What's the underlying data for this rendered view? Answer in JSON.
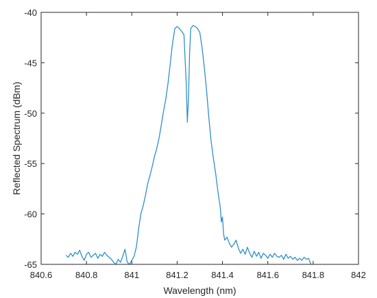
{
  "chart_data": {
    "type": "line",
    "title": "",
    "xlabel": "Wavelength (nm)",
    "ylabel": "Reflected Spectrum (dBm)",
    "xlim": [
      840.6,
      842
    ],
    "ylim": [
      -65,
      -40
    ],
    "xticks": [
      840.6,
      840.8,
      841,
      841.2,
      841.4,
      841.6,
      841.8,
      842
    ],
    "xtick_labels": [
      "840.6",
      "840.8",
      "841",
      "841.2",
      "841.4",
      "841.6",
      "841.8",
      "842"
    ],
    "yticks": [
      -40,
      -45,
      -50,
      -55,
      -60,
      -65
    ],
    "ytick_labels": [
      "-40",
      "-45",
      "-50",
      "-55",
      "-60",
      "-65"
    ],
    "grid": false,
    "box": true,
    "colors": {
      "line": "#2e8fc9",
      "axes": "#262626",
      "background": "#ffffff"
    },
    "series": [
      {
        "x": [
          840.71,
          840.72,
          840.73,
          840.74,
          840.75,
          840.76,
          840.77,
          840.78,
          840.79,
          840.8,
          840.81,
          840.82,
          840.83,
          840.84,
          840.85,
          840.86,
          840.87,
          840.88,
          840.89,
          840.9,
          840.91,
          840.92,
          840.93,
          840.94,
          840.95,
          840.96,
          840.97,
          840.98,
          840.99,
          841.0,
          841.01,
          841.02,
          841.03,
          841.04,
          841.05,
          841.06,
          841.07,
          841.08,
          841.09,
          841.1,
          841.11,
          841.12,
          841.13,
          841.14,
          841.15,
          841.16,
          841.17,
          841.18,
          841.19,
          841.2,
          841.21,
          841.22,
          841.23,
          841.24,
          841.245,
          841.25,
          841.255,
          841.26,
          841.27,
          841.28,
          841.29,
          841.3,
          841.31,
          841.32,
          841.33,
          841.34,
          841.35,
          841.36,
          841.37,
          841.38,
          841.39,
          841.395,
          841.4,
          841.405,
          841.41,
          841.42,
          841.43,
          841.44,
          841.45,
          841.46,
          841.47,
          841.48,
          841.49,
          841.5,
          841.51,
          841.52,
          841.53,
          841.54,
          841.55,
          841.56,
          841.57,
          841.58,
          841.59,
          841.6,
          841.61,
          841.62,
          841.63,
          841.64,
          841.65,
          841.66,
          841.67,
          841.68,
          841.69,
          841.7,
          841.71,
          841.72,
          841.73,
          841.74,
          841.75,
          841.76,
          841.77,
          841.78,
          841.785,
          841.79
        ],
        "y": [
          -64.1,
          -64.3,
          -63.9,
          -64.2,
          -63.8,
          -64.0,
          -63.6,
          -64.2,
          -64.6,
          -64.0,
          -63.8,
          -64.3,
          -64.1,
          -63.9,
          -64.4,
          -64.0,
          -64.2,
          -63.8,
          -64.1,
          -64.3,
          -64.5,
          -64.8,
          -65.0,
          -64.5,
          -64.8,
          -64.2,
          -63.5,
          -64.8,
          -65.0,
          -64.6,
          -64.2,
          -63.3,
          -61.5,
          -60.0,
          -59.2,
          -58.2,
          -57.0,
          -56.2,
          -55.3,
          -54.3,
          -53.5,
          -52.5,
          -51.2,
          -49.8,
          -48.6,
          -47.0,
          -45.0,
          -43.0,
          -41.6,
          -41.4,
          -41.6,
          -41.9,
          -42.2,
          -47.0,
          -50.9,
          -48.5,
          -44.0,
          -41.6,
          -41.3,
          -41.4,
          -41.6,
          -42.0,
          -43.5,
          -45.5,
          -47.8,
          -50.5,
          -52.8,
          -54.5,
          -56.0,
          -57.8,
          -59.3,
          -60.8,
          -60.3,
          -62.0,
          -62.6,
          -62.3,
          -62.9,
          -63.3,
          -63.0,
          -62.6,
          -63.4,
          -63.9,
          -63.5,
          -64.0,
          -63.3,
          -63.9,
          -64.3,
          -63.7,
          -64.2,
          -63.8,
          -64.4,
          -63.9,
          -64.1,
          -64.4,
          -64.0,
          -64.3,
          -63.9,
          -64.2,
          -64.3,
          -64.1,
          -64.5,
          -64.0,
          -64.4,
          -64.2,
          -64.5,
          -64.3,
          -64.6,
          -64.4,
          -64.6,
          -64.3,
          -64.5,
          -64.4,
          -64.7,
          -65.0
        ]
      }
    ]
  }
}
